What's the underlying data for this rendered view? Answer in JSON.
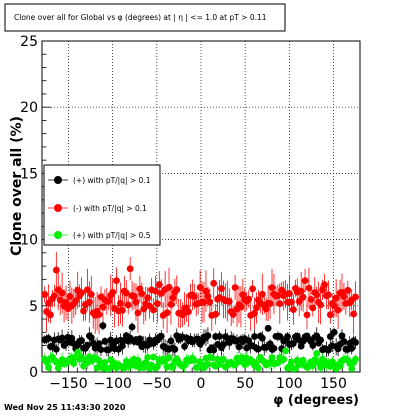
{
  "chart_data": {
    "type": "scatter",
    "title": "Clone  over all for Global vs φ (degrees) at | η | <= 1.0 at pT > 0.11",
    "xlabel": "φ (degrees)",
    "ylabel": "Clone  over all (%)",
    "xlim": [
      -180,
      180
    ],
    "ylim": [
      0,
      25
    ],
    "x_ticks": [
      -150,
      -100,
      -50,
      0,
      50,
      100,
      150
    ],
    "y_ticks": [
      0,
      5,
      10,
      15,
      20,
      25
    ],
    "grid": true,
    "legend_placement": "left",
    "series": [
      {
        "name": "(+) with pT/|q| > 0.1",
        "color": "#000000",
        "baseline": 2.2,
        "amplitude": 0.55,
        "error_base": 0.45,
        "outliers": [
          [
            -110,
            3.5
          ],
          [
            -77,
            3.4
          ],
          [
            75,
            3.3
          ],
          [
            150,
            3.0
          ]
        ]
      },
      {
        "name": "(-) with pT/|q| > 0.1",
        "color": "#ff0000",
        "baseline": 5.3,
        "amplitude": 1.1,
        "error_base": 1.1,
        "outliers": [
          [
            -164,
            7.7
          ],
          [
            -95,
            6.9
          ],
          [
            -80,
            7.8
          ],
          [
            -48,
            6.6
          ],
          [
            15,
            6.7
          ],
          [
            118,
            6.9
          ],
          [
            140,
            6.6
          ]
        ]
      },
      {
        "name": "(+) with pT/|q| > 0.5",
        "color": "#00ee00",
        "baseline": 0.7,
        "amplitude": 0.45,
        "error_base": 0.35,
        "outliers": [
          [
            -140,
            1.5
          ],
          [
            95,
            1.6
          ],
          [
            131,
            1.4
          ]
        ]
      }
    ]
  },
  "footer": {
    "timestamp": "Wed Nov 25 11:43:30 2020"
  }
}
